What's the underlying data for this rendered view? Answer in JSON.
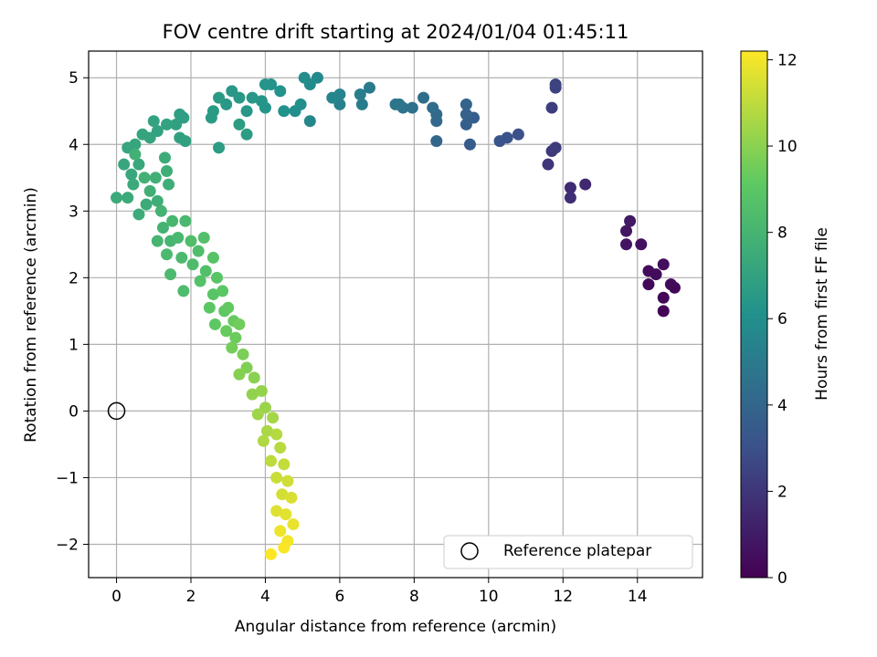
{
  "chart_data": {
    "type": "scatter",
    "title": "FOV centre drift starting at 2024/01/04 01:45:11",
    "xlabel": "Angular distance from reference (arcmin)",
    "ylabel": "Rotation from reference (arcmin)",
    "xlim": [
      -0.75,
      15.75
    ],
    "ylim": [
      -2.5,
      5.4
    ],
    "xticks": [
      0,
      2,
      4,
      6,
      8,
      10,
      12,
      14
    ],
    "yticks": [
      -2,
      -1,
      0,
      1,
      2,
      3,
      4,
      5
    ],
    "grid": true,
    "legend": {
      "position": "lower-right",
      "entries": [
        "Reference platepar"
      ]
    },
    "colorbar": {
      "label": "Hours from first FF file",
      "colormap": "viridis",
      "range": [
        0,
        12.2
      ],
      "ticks": [
        0,
        2,
        4,
        6,
        8,
        10,
        12
      ]
    },
    "reference_point": {
      "x": 0,
      "y": 0,
      "label": "Reference platepar"
    },
    "series": [
      {
        "points_hours": [
          [
            14.7,
            1.5,
            0.1
          ],
          [
            14.7,
            1.7,
            0.2
          ],
          [
            15.0,
            1.85,
            0.2
          ],
          [
            14.9,
            1.9,
            0.3
          ],
          [
            14.3,
            1.9,
            0.3
          ],
          [
            14.5,
            2.05,
            0.4
          ],
          [
            14.3,
            2.1,
            0.4
          ],
          [
            14.7,
            2.2,
            0.5
          ],
          [
            14.1,
            2.5,
            0.6
          ],
          [
            13.7,
            2.5,
            0.7
          ],
          [
            13.7,
            2.7,
            0.8
          ],
          [
            13.8,
            2.85,
            0.9
          ],
          [
            12.6,
            3.4,
            1.5
          ],
          [
            12.2,
            3.35,
            1.6
          ],
          [
            12.2,
            3.2,
            1.7
          ],
          [
            11.6,
            3.7,
            2.0
          ],
          [
            11.7,
            3.9,
            2.1
          ],
          [
            11.8,
            3.95,
            2.2
          ],
          [
            11.7,
            4.55,
            2.3
          ],
          [
            11.8,
            4.85,
            2.4
          ],
          [
            11.8,
            4.9,
            2.5
          ],
          [
            10.8,
            4.15,
            3.0
          ],
          [
            10.5,
            4.1,
            3.1
          ],
          [
            10.3,
            4.05,
            3.2
          ],
          [
            9.5,
            4.0,
            3.5
          ],
          [
            9.6,
            4.4,
            3.6
          ],
          [
            9.4,
            4.3,
            3.7
          ],
          [
            9.4,
            4.45,
            3.8
          ],
          [
            9.4,
            4.6,
            3.9
          ],
          [
            8.6,
            4.05,
            4.0
          ],
          [
            8.6,
            4.35,
            4.1
          ],
          [
            8.6,
            4.45,
            4.2
          ],
          [
            8.5,
            4.55,
            4.3
          ],
          [
            8.25,
            4.7,
            4.4
          ],
          [
            7.95,
            4.55,
            4.5
          ],
          [
            7.7,
            4.55,
            4.6
          ],
          [
            7.6,
            4.6,
            4.7
          ],
          [
            7.5,
            4.6,
            4.8
          ],
          [
            6.8,
            4.85,
            5.0
          ],
          [
            6.6,
            4.6,
            5.1
          ],
          [
            6.55,
            4.75,
            5.2
          ],
          [
            6.0,
            4.6,
            5.3
          ],
          [
            6.0,
            4.75,
            5.4
          ],
          [
            5.8,
            4.7,
            5.5
          ],
          [
            5.2,
            4.35,
            5.6
          ],
          [
            5.4,
            5.0,
            5.7
          ],
          [
            5.2,
            4.9,
            5.8
          ],
          [
            5.05,
            5.0,
            5.9
          ],
          [
            4.95,
            4.6,
            6.0
          ],
          [
            4.8,
            4.5,
            6.0
          ],
          [
            4.5,
            4.5,
            6.1
          ],
          [
            4.4,
            4.8,
            6.2
          ],
          [
            4.15,
            4.9,
            6.2
          ],
          [
            4.0,
            4.9,
            6.3
          ],
          [
            4.0,
            4.55,
            6.3
          ],
          [
            3.9,
            4.65,
            6.3
          ],
          [
            3.65,
            4.7,
            6.4
          ],
          [
            3.5,
            4.5,
            6.4
          ],
          [
            3.3,
            4.7,
            6.5
          ],
          [
            3.1,
            4.8,
            6.5
          ],
          [
            2.95,
            4.6,
            6.5
          ],
          [
            2.75,
            4.7,
            6.6
          ],
          [
            2.6,
            4.5,
            6.6
          ],
          [
            2.55,
            4.4,
            6.6
          ],
          [
            2.75,
            3.95,
            6.7
          ],
          [
            3.3,
            4.3,
            6.7
          ],
          [
            3.5,
            4.15,
            6.7
          ],
          [
            1.8,
            4.4,
            6.8
          ],
          [
            1.7,
            4.45,
            6.8
          ],
          [
            1.6,
            4.3,
            6.9
          ],
          [
            1.7,
            4.1,
            6.9
          ],
          [
            1.85,
            4.05,
            6.9
          ],
          [
            1.35,
            4.3,
            7.0
          ],
          [
            1.0,
            4.35,
            7.0
          ],
          [
            1.1,
            4.2,
            7.0
          ],
          [
            0.9,
            4.1,
            7.1
          ],
          [
            0.7,
            4.15,
            7.1
          ],
          [
            0.5,
            4.0,
            7.2
          ],
          [
            0.3,
            3.95,
            7.2
          ],
          [
            0.2,
            3.7,
            7.2
          ],
          [
            0.4,
            3.55,
            7.3
          ],
          [
            0.6,
            3.7,
            7.3
          ],
          [
            0.45,
            3.4,
            7.4
          ],
          [
            0.3,
            3.2,
            7.4
          ],
          [
            0.0,
            3.2,
            7.4
          ],
          [
            0.6,
            2.95,
            7.5
          ],
          [
            0.8,
            3.1,
            7.5
          ],
          [
            1.3,
            3.8,
            7.5
          ],
          [
            1.35,
            3.6,
            7.6
          ],
          [
            1.4,
            3.4,
            7.6
          ],
          [
            1.1,
            3.15,
            7.6
          ],
          [
            0.9,
            3.3,
            7.7
          ],
          [
            1.05,
            3.5,
            7.7
          ],
          [
            0.75,
            3.5,
            7.8
          ],
          [
            0.5,
            3.85,
            7.8
          ],
          [
            1.2,
            3.0,
            7.9
          ],
          [
            1.25,
            2.75,
            7.9
          ],
          [
            1.1,
            2.55,
            8.0
          ],
          [
            1.45,
            2.55,
            8.0
          ],
          [
            1.5,
            2.85,
            8.1
          ],
          [
            1.65,
            2.6,
            8.2
          ],
          [
            1.85,
            2.85,
            8.2
          ],
          [
            1.75,
            2.3,
            8.3
          ],
          [
            1.35,
            2.35,
            8.3
          ],
          [
            1.45,
            2.05,
            8.3
          ],
          [
            1.8,
            1.8,
            8.4
          ],
          [
            2.05,
            2.2,
            8.4
          ],
          [
            2.0,
            2.55,
            8.5
          ],
          [
            2.2,
            2.4,
            8.5
          ],
          [
            2.35,
            2.6,
            8.6
          ],
          [
            2.4,
            2.1,
            8.6
          ],
          [
            2.25,
            1.95,
            8.7
          ],
          [
            2.6,
            2.3,
            8.8
          ],
          [
            2.7,
            2.0,
            8.9
          ],
          [
            2.6,
            1.75,
            8.9
          ],
          [
            2.85,
            1.8,
            9.0
          ],
          [
            2.5,
            1.55,
            9.0
          ],
          [
            2.9,
            1.5,
            9.1
          ],
          [
            2.65,
            1.3,
            9.1
          ],
          [
            3.0,
            1.55,
            9.2
          ],
          [
            3.15,
            1.35,
            9.3
          ],
          [
            2.95,
            1.2,
            9.3
          ],
          [
            3.2,
            1.1,
            9.4
          ],
          [
            3.3,
            1.3,
            9.5
          ],
          [
            3.1,
            0.95,
            9.6
          ],
          [
            3.4,
            0.85,
            9.7
          ],
          [
            3.5,
            0.65,
            9.8
          ],
          [
            3.3,
            0.55,
            9.9
          ],
          [
            3.7,
            0.5,
            10.0
          ],
          [
            3.65,
            0.25,
            10.1
          ],
          [
            3.9,
            0.3,
            10.2
          ],
          [
            4.0,
            0.05,
            10.3
          ],
          [
            3.8,
            -0.05,
            10.4
          ],
          [
            4.2,
            -0.1,
            10.5
          ],
          [
            4.05,
            -0.3,
            10.6
          ],
          [
            3.95,
            -0.45,
            10.7
          ],
          [
            4.3,
            -0.35,
            10.8
          ],
          [
            4.4,
            -0.55,
            10.9
          ],
          [
            4.15,
            -0.75,
            11.0
          ],
          [
            4.5,
            -0.8,
            11.1
          ],
          [
            4.3,
            -1.0,
            11.2
          ],
          [
            4.6,
            -1.05,
            11.3
          ],
          [
            4.45,
            -1.25,
            11.4
          ],
          [
            4.7,
            -1.3,
            11.5
          ],
          [
            4.3,
            -1.5,
            11.6
          ],
          [
            4.55,
            -1.55,
            11.7
          ],
          [
            4.75,
            -1.7,
            11.8
          ],
          [
            4.4,
            -1.8,
            11.9
          ],
          [
            4.6,
            -1.95,
            12.0
          ],
          [
            4.5,
            -2.05,
            12.1
          ],
          [
            4.15,
            -2.15,
            12.2
          ]
        ]
      }
    ]
  }
}
